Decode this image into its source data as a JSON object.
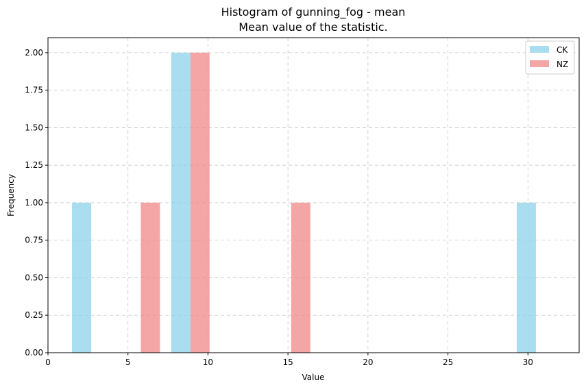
{
  "chart_data": {
    "type": "bar",
    "title": "Histogram of gunning_fog - mean",
    "subtitle": "Mean value of the statistic.",
    "xlabel": "Value",
    "ylabel": "Frequency",
    "xlim": [
      0,
      33.2
    ],
    "ylim": [
      0,
      2.1
    ],
    "xticks": [
      0,
      5,
      10,
      15,
      20,
      25,
      30
    ],
    "yticks": [
      0.0,
      0.25,
      0.5,
      0.75,
      1.0,
      1.25,
      1.5,
      1.75,
      2.0
    ],
    "xtick_labels": [
      "0",
      "5",
      "10",
      "15",
      "20",
      "25",
      "30"
    ],
    "ytick_labels": [
      "0.00",
      "0.25",
      "0.50",
      "0.75",
      "1.00",
      "1.25",
      "1.50",
      "1.75",
      "2.00"
    ],
    "grid": true,
    "legend_position": "top-right",
    "series": [
      {
        "name": "CK",
        "color": "#87ceeb",
        "bins": [
          {
            "x0": 1.5,
            "x1": 2.7,
            "value": 1
          },
          {
            "x0": 7.7,
            "x1": 8.9,
            "value": 2
          },
          {
            "x0": 29.3,
            "x1": 30.5,
            "value": 1
          }
        ]
      },
      {
        "name": "NZ",
        "color": "#f08080",
        "bins": [
          {
            "x0": 5.8,
            "x1": 7.0,
            "value": 1
          },
          {
            "x0": 8.9,
            "x1": 10.1,
            "value": 2
          },
          {
            "x0": 15.2,
            "x1": 16.4,
            "value": 1
          }
        ]
      }
    ]
  }
}
